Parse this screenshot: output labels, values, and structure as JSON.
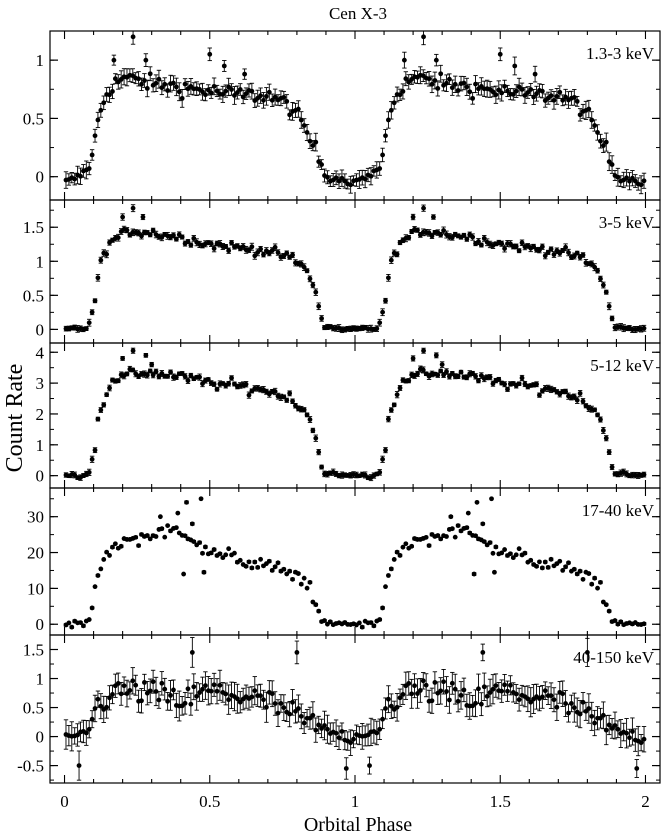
{
  "title": "Cen X-3",
  "xlabel": "Orbital Phase",
  "ylabel": "Count Rate",
  "x_ticks": [
    "0",
    "0.5",
    "1",
    "1.5",
    "2"
  ],
  "chart_data": [
    {
      "type": "scatter",
      "band": "1.3-3 keV",
      "xlim": [
        -0.05,
        2.05
      ],
      "ylim": [
        -0.2,
        1.25
      ],
      "yticks": [
        0,
        0.5,
        1
      ],
      "ytick_labels": [
        "0",
        "0.5",
        "1"
      ],
      "knots": [
        [
          0,
          -0.05
        ],
        [
          0.05,
          0.0
        ],
        [
          0.09,
          0.1
        ],
        [
          0.12,
          0.55
        ],
        [
          0.15,
          0.75
        ],
        [
          0.2,
          0.85
        ],
        [
          0.3,
          0.8
        ],
        [
          0.45,
          0.75
        ],
        [
          0.6,
          0.7
        ],
        [
          0.7,
          0.7
        ],
        [
          0.78,
          0.6
        ],
        [
          0.83,
          0.4
        ],
        [
          0.87,
          0.2
        ],
        [
          0.9,
          0.0
        ],
        [
          0.95,
          -0.02
        ],
        [
          1.0,
          -0.05
        ]
      ],
      "scatter": 0.07,
      "err": 0.06,
      "outliers": [
        [
          0.236,
          1.2
        ],
        [
          0.17,
          1.0
        ],
        [
          0.28,
          1.0
        ],
        [
          0.5,
          1.05
        ],
        [
          0.62,
          0.88
        ],
        [
          0.55,
          0.95
        ]
      ]
    },
    {
      "type": "scatter",
      "band": "3-5 keV",
      "xlim": [
        -0.05,
        2.05
      ],
      "ylim": [
        -0.2,
        1.9
      ],
      "yticks": [
        0,
        0.5,
        1,
        1.5
      ],
      "ytick_labels": [
        "0",
        "0.5",
        "1",
        "1.5"
      ],
      "knots": [
        [
          0,
          0.0
        ],
        [
          0.08,
          0.02
        ],
        [
          0.1,
          0.3
        ],
        [
          0.12,
          0.9
        ],
        [
          0.15,
          1.25
        ],
        [
          0.22,
          1.45
        ],
        [
          0.3,
          1.42
        ],
        [
          0.4,
          1.35
        ],
        [
          0.5,
          1.25
        ],
        [
          0.6,
          1.2
        ],
        [
          0.7,
          1.15
        ],
        [
          0.78,
          1.05
        ],
        [
          0.84,
          0.85
        ],
        [
          0.87,
          0.45
        ],
        [
          0.89,
          0.05
        ],
        [
          0.95,
          0.0
        ],
        [
          1.0,
          0.0
        ]
      ],
      "scatter": 0.07,
      "err": 0.04,
      "outliers": [
        [
          0.236,
          1.78
        ],
        [
          0.2,
          1.65
        ],
        [
          0.27,
          1.65
        ]
      ]
    },
    {
      "type": "scatter",
      "band": "5-12 keV",
      "xlim": [
        -0.05,
        2.05
      ],
      "ylim": [
        -0.4,
        4.3
      ],
      "yticks": [
        0,
        1,
        2,
        3,
        4
      ],
      "ytick_labels": [
        "0",
        "1",
        "2",
        "3",
        "4"
      ],
      "knots": [
        [
          0,
          0.0
        ],
        [
          0.08,
          0.02
        ],
        [
          0.1,
          0.7
        ],
        [
          0.12,
          2.0
        ],
        [
          0.15,
          2.9
        ],
        [
          0.22,
          3.3
        ],
        [
          0.3,
          3.35
        ],
        [
          0.4,
          3.2
        ],
        [
          0.5,
          3.0
        ],
        [
          0.6,
          2.9
        ],
        [
          0.7,
          2.75
        ],
        [
          0.78,
          2.5
        ],
        [
          0.84,
          2.0
        ],
        [
          0.87,
          1.0
        ],
        [
          0.89,
          0.1
        ],
        [
          0.95,
          0.0
        ],
        [
          1.0,
          0.0
        ]
      ],
      "scatter": 0.18,
      "err": 0.08,
      "outliers": [
        [
          0.236,
          4.05
        ],
        [
          0.2,
          3.8
        ],
        [
          0.28,
          3.9
        ],
        [
          0.3,
          3.6
        ]
      ]
    },
    {
      "type": "scatter",
      "band": "17-40 keV",
      "xlim": [
        -0.05,
        2.05
      ],
      "ylim": [
        -3,
        38
      ],
      "yticks": [
        0,
        10,
        20,
        30
      ],
      "ytick_labels": [
        "0",
        "10",
        "20",
        "30"
      ],
      "knots": [
        [
          0,
          0.0
        ],
        [
          0.08,
          0.2
        ],
        [
          0.09,
          2.0
        ],
        [
          0.11,
          12.0
        ],
        [
          0.14,
          20.0
        ],
        [
          0.2,
          23.0
        ],
        [
          0.3,
          25.0
        ],
        [
          0.38,
          26.0
        ],
        [
          0.45,
          24.0
        ],
        [
          0.5,
          20.0
        ],
        [
          0.6,
          18.0
        ],
        [
          0.7,
          16.0
        ],
        [
          0.8,
          14.0
        ],
        [
          0.85,
          10.0
        ],
        [
          0.87,
          3.0
        ],
        [
          0.89,
          0.3
        ],
        [
          0.95,
          0.0
        ],
        [
          1.0,
          0.0
        ]
      ],
      "scatter": 2.0,
      "err": 0.3,
      "outliers": [
        [
          0.42,
          34.0
        ],
        [
          0.47,
          35.0
        ],
        [
          0.39,
          31.0
        ],
        [
          0.33,
          30.0
        ],
        [
          0.44,
          28.0
        ],
        [
          0.41,
          14.0
        ],
        [
          0.48,
          14.5
        ]
      ]
    },
    {
      "type": "scatter",
      "band": "40-150 keV",
      "xlim": [
        -0.05,
        2.05
      ],
      "ylim": [
        -0.8,
        1.75
      ],
      "yticks": [
        -0.5,
        0,
        0.5,
        1,
        1.5
      ],
      "ytick_labels": [
        "-0.5",
        "0",
        "0.5",
        "1",
        "1.5"
      ],
      "knots": [
        [
          0,
          -0.1
        ],
        [
          0.08,
          0.1
        ],
        [
          0.12,
          0.6
        ],
        [
          0.2,
          0.8
        ],
        [
          0.3,
          0.75
        ],
        [
          0.4,
          0.6
        ],
        [
          0.5,
          0.8
        ],
        [
          0.6,
          0.7
        ],
        [
          0.7,
          0.6
        ],
        [
          0.8,
          0.35
        ],
        [
          0.9,
          0.1
        ],
        [
          1.0,
          -0.05
        ]
      ],
      "scatter": 0.22,
      "err": 0.2,
      "outliers": [
        [
          0.44,
          1.45
        ],
        [
          0.8,
          1.45
        ],
        [
          0.05,
          -0.5
        ],
        [
          0.97,
          -0.55
        ]
      ]
    }
  ]
}
